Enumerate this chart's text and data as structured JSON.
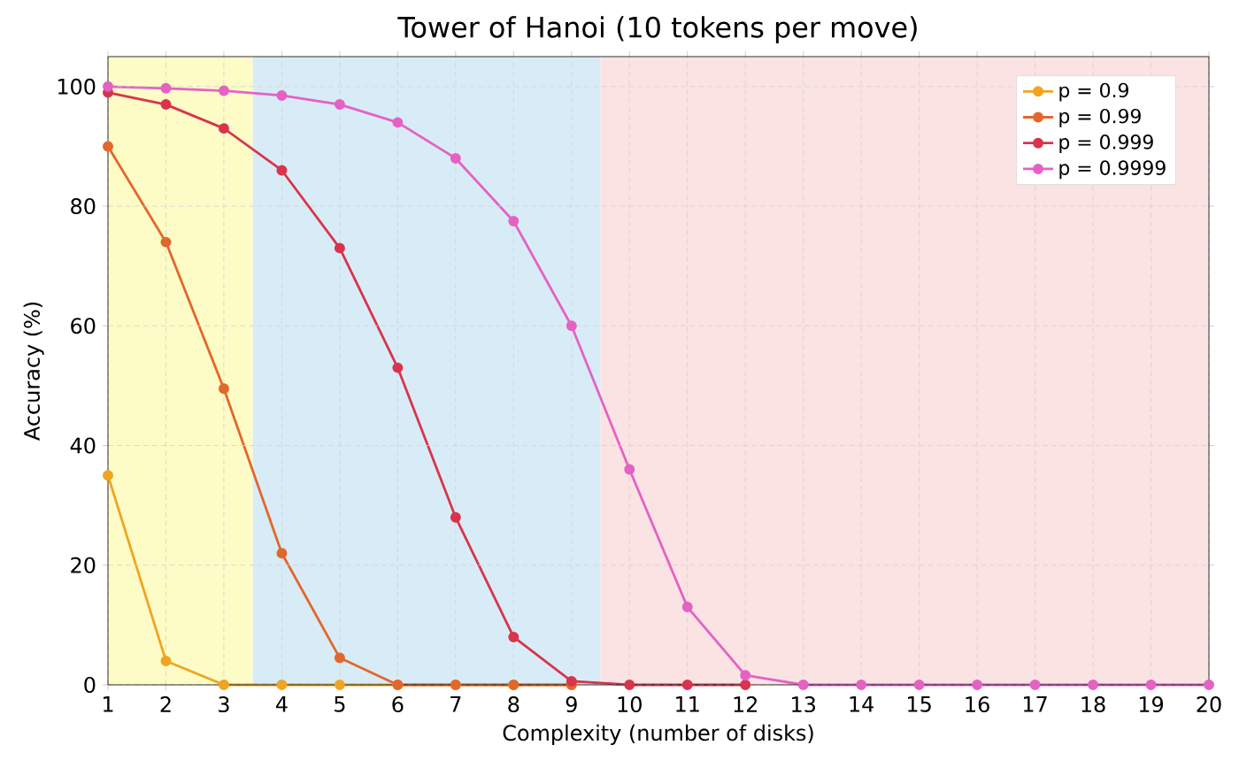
{
  "chart_data": {
    "type": "line",
    "title": "Tower of Hanoi (10 tokens per move)",
    "xlabel": "Complexity (number of disks)",
    "ylabel": "Accuracy (%)",
    "x": [
      1,
      2,
      3,
      4,
      5,
      6,
      7,
      8,
      9,
      10,
      11,
      12,
      13,
      14,
      15,
      16,
      17,
      18,
      19,
      20
    ],
    "series": [
      {
        "name": "p = 0.9",
        "color": "#f0a522",
        "values": [
          35,
          4,
          0,
          0,
          0,
          0,
          0,
          0,
          0,
          null,
          null,
          null,
          null,
          null,
          null,
          null,
          null,
          null,
          null,
          null
        ]
      },
      {
        "name": "p = 0.99",
        "color": "#e2672d",
        "values": [
          90,
          74,
          49.5,
          22,
          4.5,
          0,
          0,
          0,
          0,
          null,
          null,
          null,
          null,
          null,
          null,
          null,
          null,
          null,
          null,
          null
        ]
      },
      {
        "name": "p = 0.999",
        "color": "#d9344c",
        "values": [
          99,
          97,
          93,
          86,
          73,
          53,
          28,
          8,
          0.6,
          0,
          0,
          0,
          null,
          null,
          null,
          null,
          null,
          null,
          null,
          null
        ]
      },
      {
        "name": "p = 0.9999",
        "color": "#e462c4",
        "values": [
          100,
          99.7,
          99.3,
          98.5,
          97,
          94,
          88,
          77.5,
          60,
          36,
          13,
          1.6,
          0,
          0,
          0,
          0,
          0,
          0,
          0,
          0
        ]
      }
    ],
    "xlim": [
      1,
      20
    ],
    "ylim": [
      0,
      105
    ],
    "xticks": [
      1,
      2,
      3,
      4,
      5,
      6,
      7,
      8,
      9,
      10,
      11,
      12,
      13,
      14,
      15,
      16,
      17,
      18,
      19,
      20
    ],
    "yticks": [
      0,
      20,
      40,
      60,
      80,
      100
    ],
    "bands": [
      {
        "axis": "x",
        "from": 1,
        "to": 3.5,
        "color": "#fdfbc6"
      },
      {
        "axis": "x",
        "from": 3.5,
        "to": 9.5,
        "color": "#d8ecf7"
      },
      {
        "axis": "x",
        "from": 9.5,
        "to": 20,
        "color": "#fbe3e3"
      }
    ],
    "grid": true,
    "legend": "top right",
    "marker": "circle",
    "line_style": "solid"
  }
}
